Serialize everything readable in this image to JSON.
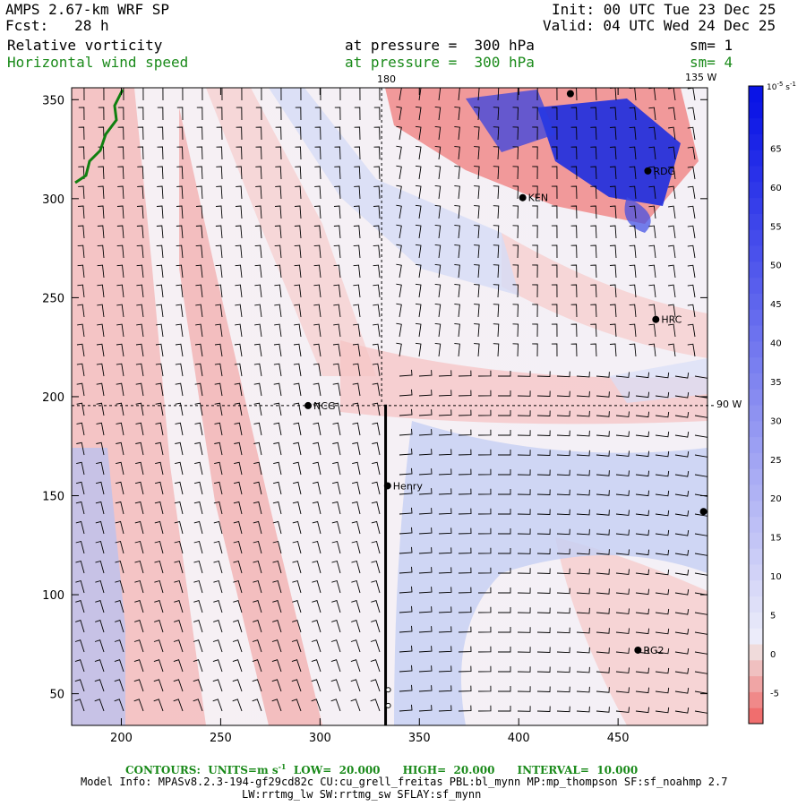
{
  "header": {
    "model": "AMPS 2.67-km WRF SP",
    "fcst": "Fcst:   28 h",
    "init": "Init: 00 UTC Tue 23 Dec 25",
    "valid": "Valid: 04 UTC Wed 24 Dec 25",
    "field1": "Relative vorticity",
    "field1_level": "at pressure =  300 hPa",
    "field1_sm": "sm= 1",
    "field2": "Horizontal wind speed",
    "field2_level": "at pressure =  300 hPa",
    "field2_sm": "sm= 4"
  },
  "map_labels": {
    "lon_180": "180",
    "lon_135w": "135 W",
    "lon_90w": "90 W"
  },
  "footer": {
    "contours": "CONTOURS:  UNITS=m s",
    "contours_exp": "-1",
    "contours_rest": "  LOW=  20.000      HIGH=  20.000      INTERVAL=  10.000",
    "model_info": "Model Info: MPASv8.2.3-194-gf29cd82c CU:cu_grell_freitas PBL:bl_mynn MP:mp_thompson SF:sf_noahmp 2.7",
    "model_info2": "LW:rrtmg_lw SW:rrtmg_sw SFLAY:sf_mynn"
  },
  "colors": {
    "positive": "#2020e0",
    "negative": "#f07070",
    "coast": "#108010",
    "barb": "#000000"
  },
  "chart_data": {
    "type": "heatmap",
    "title": "Relative vorticity",
    "xlim": [
      175,
      495
    ],
    "ylim": [
      34,
      356
    ],
    "x_ticks": [
      200,
      250,
      300,
      350,
      400,
      450
    ],
    "y_ticks": [
      50,
      100,
      150,
      200,
      250,
      300,
      350
    ],
    "colorbar": {
      "units": "10",
      "units_exp": "-5",
      "units_suffix": "s",
      "units_suffix_exp": "-1",
      "ticks": [
        -5,
        0,
        5,
        10,
        15,
        20,
        25,
        30,
        35,
        40,
        45,
        50,
        55,
        60,
        65
      ],
      "range": [
        -9,
        73
      ]
    },
    "stations": [
      {
        "name": "NCG",
        "x": 294,
        "y": 195.5
      },
      {
        "name": "Henry",
        "x": 334,
        "y": 155
      },
      {
        "name": "KEN",
        "x": 402,
        "y": 300.5
      },
      {
        "name": "RDG",
        "x": 465,
        "y": 314
      },
      {
        "name": "HRC",
        "x": 469,
        "y": 239
      },
      {
        "name": "RG2",
        "x": 460,
        "y": 72
      },
      {
        "name": "",
        "x": 493,
        "y": 142
      },
      {
        "name": "",
        "x": 426,
        "y": 353
      }
    ],
    "section_line": {
      "x": 333,
      "y_from": 34,
      "y_to": 196
    },
    "grid_lines": {
      "lon_180_x": 331,
      "lon_90w_y": 195.5
    }
  }
}
